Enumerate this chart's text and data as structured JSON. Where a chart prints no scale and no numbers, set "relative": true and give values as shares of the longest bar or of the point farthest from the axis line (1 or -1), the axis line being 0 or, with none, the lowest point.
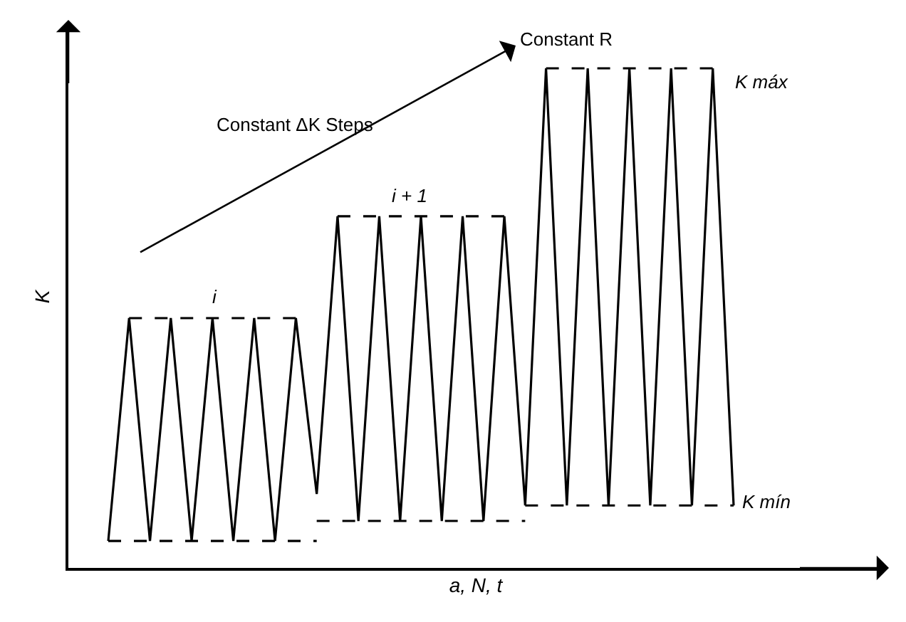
{
  "chart_data": {
    "type": "line",
    "relative": true,
    "xlabel": "a, N, t",
    "ylabel": "K",
    "grid": false,
    "marker": "none",
    "categories": [
      null,
      null,
      null,
      null,
      null,
      null,
      null,
      null,
      null,
      null,
      null,
      null,
      null,
      null,
      null,
      null,
      null,
      null,
      null,
      null,
      null,
      null,
      null,
      null,
      null,
      null,
      null,
      null,
      null,
      null,
      null
    ],
    "annotations": [
      "Constant ΔK Steps",
      "Constant R",
      "i",
      "i + 1",
      "K máx",
      "K mín"
    ],
    "series": [
      {
        "color": "#000000",
        "line_style": "solid",
        "values": [
          0.054,
          0.5,
          0.054,
          0.5,
          0.054,
          0.5,
          0.054,
          0.5,
          0.054,
          0.5,
          0.148,
          0.704,
          0.094,
          0.704,
          0.094,
          0.704,
          0.094,
          0.704,
          0.094,
          0.704,
          0.125,
          1,
          0.125,
          1,
          0.125,
          1,
          0.125,
          1,
          0.125,
          1,
          0.125
        ]
      },
      {
        "color": "#000000",
        "line_style": "dashed",
        "values": [
          0.054,
          0.054,
          0.054,
          0.054,
          0.054,
          0.054,
          0.054,
          0.054,
          0.054,
          0.054,
          0.054,
          null,
          null,
          null,
          null,
          null,
          null,
          null,
          null,
          null,
          null,
          null,
          null,
          null,
          null,
          null,
          null,
          null,
          null,
          null,
          null
        ]
      },
      {
        "color": "#000000",
        "line_style": "dashed",
        "values": [
          null,
          0.5,
          0.5,
          0.5,
          0.5,
          0.5,
          0.5,
          0.5,
          0.5,
          0.5,
          null,
          null,
          null,
          null,
          null,
          null,
          null,
          null,
          null,
          null,
          null,
          null,
          null,
          null,
          null,
          null,
          null,
          null,
          null,
          null,
          null
        ]
      },
      {
        "color": "#000000",
        "line_style": "dashed",
        "values": [
          null,
          null,
          null,
          null,
          null,
          null,
          null,
          null,
          null,
          null,
          0.094,
          0.094,
          0.094,
          0.094,
          0.094,
          0.094,
          0.094,
          0.094,
          0.094,
          0.094,
          0.094,
          null,
          null,
          null,
          null,
          null,
          null,
          null,
          null,
          null,
          null
        ]
      },
      {
        "color": "#000000",
        "line_style": "dashed",
        "values": [
          null,
          null,
          null,
          null,
          null,
          null,
          null,
          null,
          null,
          null,
          null,
          0.704,
          0.704,
          0.704,
          0.704,
          0.704,
          0.704,
          0.704,
          0.704,
          0.704,
          null,
          null,
          null,
          null,
          null,
          null,
          null,
          null,
          null,
          null,
          null
        ]
      },
      {
        "color": "#000000",
        "line_style": "dashed",
        "values": [
          null,
          null,
          null,
          null,
          null,
          null,
          null,
          null,
          null,
          null,
          null,
          null,
          null,
          null,
          null,
          null,
          null,
          null,
          null,
          null,
          0.125,
          0.125,
          0.125,
          0.125,
          0.125,
          0.125,
          0.125,
          0.125,
          0.125,
          0.125,
          0.125
        ]
      },
      {
        "color": "#000000",
        "line_style": "dashed",
        "values": [
          null,
          null,
          null,
          null,
          null,
          null,
          null,
          null,
          null,
          null,
          null,
          null,
          null,
          null,
          null,
          null,
          null,
          null,
          null,
          null,
          null,
          1,
          1,
          1,
          1,
          1,
          1,
          1,
          1,
          1,
          null
        ]
      }
    ]
  }
}
